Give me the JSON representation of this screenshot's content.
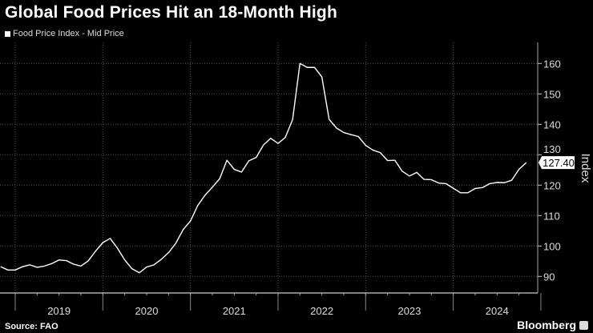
{
  "title": "Global Food Prices Hit an 18-Month High",
  "source": "Source: FAO",
  "brand": "Bloomberg",
  "chart_data": {
    "type": "line",
    "title": "Global Food Prices Hit an 18-Month High",
    "ylabel": "Index",
    "xlabel": "",
    "legend": "top-left",
    "grid": true,
    "ylim": [
      85,
      167
    ],
    "yticks": [
      90,
      100,
      110,
      120,
      130,
      140,
      150,
      160
    ],
    "xtick_labels": [
      "2019",
      "2020",
      "2021",
      "2022",
      "2023",
      "2024"
    ],
    "last_value_label": "127.40",
    "line_color": "#ffffff",
    "series": [
      {
        "name": "Food Price Index - Mid Price",
        "start": "2018-11",
        "frequency": "monthly",
        "values": [
          93.2,
          92.1,
          92.1,
          93.2,
          93.8,
          93.0,
          93.4,
          94.2,
          95.4,
          95.2,
          94.0,
          93.4,
          95.1,
          98.3,
          101.1,
          102.5,
          99.3,
          95.4,
          92.5,
          91.2,
          93.1,
          93.8,
          95.6,
          97.8,
          100.9,
          105.4,
          108.2,
          113.3,
          116.7,
          119.3,
          122.1,
          128.2,
          125.2,
          124.3,
          128.0,
          129.1,
          133.2,
          135.4,
          133.7,
          135.7,
          141.6,
          160.0,
          158.7,
          158.7,
          155.6,
          141.6,
          138.8,
          137.3,
          136.6,
          136.0,
          133.1,
          131.5,
          130.7,
          128.1,
          128.2,
          124.6,
          123.0,
          124.2,
          121.9,
          121.8,
          120.7,
          120.5,
          119.0,
          117.5,
          117.5,
          118.9,
          119.2,
          120.5,
          120.9,
          120.8,
          121.6,
          125.2,
          127.4
        ]
      }
    ]
  }
}
